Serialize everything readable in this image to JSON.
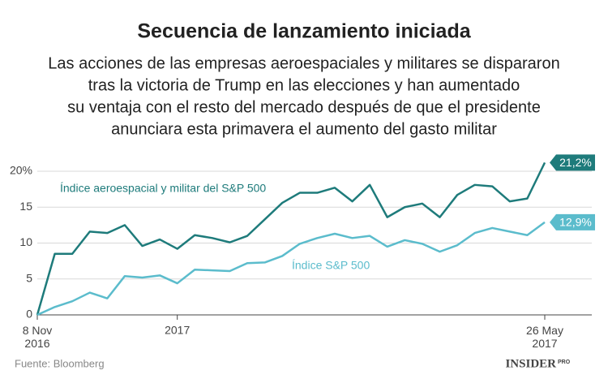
{
  "chart_data": {
    "type": "line",
    "title": "Secuencia de lanzamiento iniciada",
    "subtitle": [
      "Las acciones de las empresas aeroespaciales y militares se dispararon",
      "tras la victoria de Trump en las elecciones y han aumentado",
      "su ventaja con el resto del mercado después de que el presidente",
      "anunciara esta primavera el aumento del gasto militar"
    ],
    "categories": [
      "8 Nov\n2016",
      null,
      null,
      null,
      null,
      null,
      null,
      null,
      "2017",
      null,
      null,
      null,
      null,
      null,
      null,
      null,
      null,
      null,
      null,
      null,
      null,
      null,
      null,
      null,
      null,
      null,
      null,
      null,
      null,
      "26 May\n2017"
    ],
    "series": [
      {
        "name": "Índice aeroespacial y militar del S&P 500",
        "color": "#1e7b7b",
        "values": [
          0,
          8.5,
          8.5,
          11.6,
          11.4,
          12.5,
          9.6,
          10.5,
          9.2,
          11.1,
          10.7,
          10.1,
          11.0,
          13.3,
          15.6,
          17.0,
          17.0,
          17.7,
          15.8,
          18.1,
          13.6,
          15.0,
          15.5,
          13.6,
          16.7,
          18.1,
          17.9,
          15.8,
          16.2,
          21.2
        ],
        "value_labels": [
          null,
          null,
          null,
          null,
          null,
          null,
          null,
          null,
          null,
          null,
          null,
          null,
          null,
          null,
          null,
          null,
          null,
          null,
          null,
          null,
          null,
          null,
          null,
          null,
          null,
          null,
          null,
          null,
          null,
          "21,2%"
        ]
      },
      {
        "name": "Índice S&P 500",
        "color": "#5bbccc",
        "values": [
          0,
          1.1,
          1.9,
          3.1,
          2.3,
          5.4,
          5.2,
          5.5,
          4.4,
          6.3,
          6.2,
          6.1,
          7.2,
          7.3,
          8.2,
          9.9,
          10.7,
          11.3,
          10.7,
          11.0,
          9.5,
          10.4,
          9.9,
          8.8,
          9.7,
          11.4,
          12.1,
          11.6,
          11.1,
          12.9
        ],
        "value_labels": [
          null,
          null,
          null,
          null,
          null,
          null,
          null,
          null,
          null,
          null,
          null,
          null,
          null,
          null,
          null,
          null,
          null,
          null,
          null,
          null,
          null,
          null,
          null,
          null,
          null,
          null,
          null,
          null,
          null,
          "12,9%"
        ]
      }
    ],
    "ylim": [
      0,
      20
    ],
    "yticks": [
      0,
      5,
      10,
      15,
      {
        "value": 20,
        "label": "20%"
      }
    ],
    "grid": true,
    "source": "Fuente: Bloomberg",
    "logo": "INSIDER",
    "logo_suffix": "PRO"
  }
}
